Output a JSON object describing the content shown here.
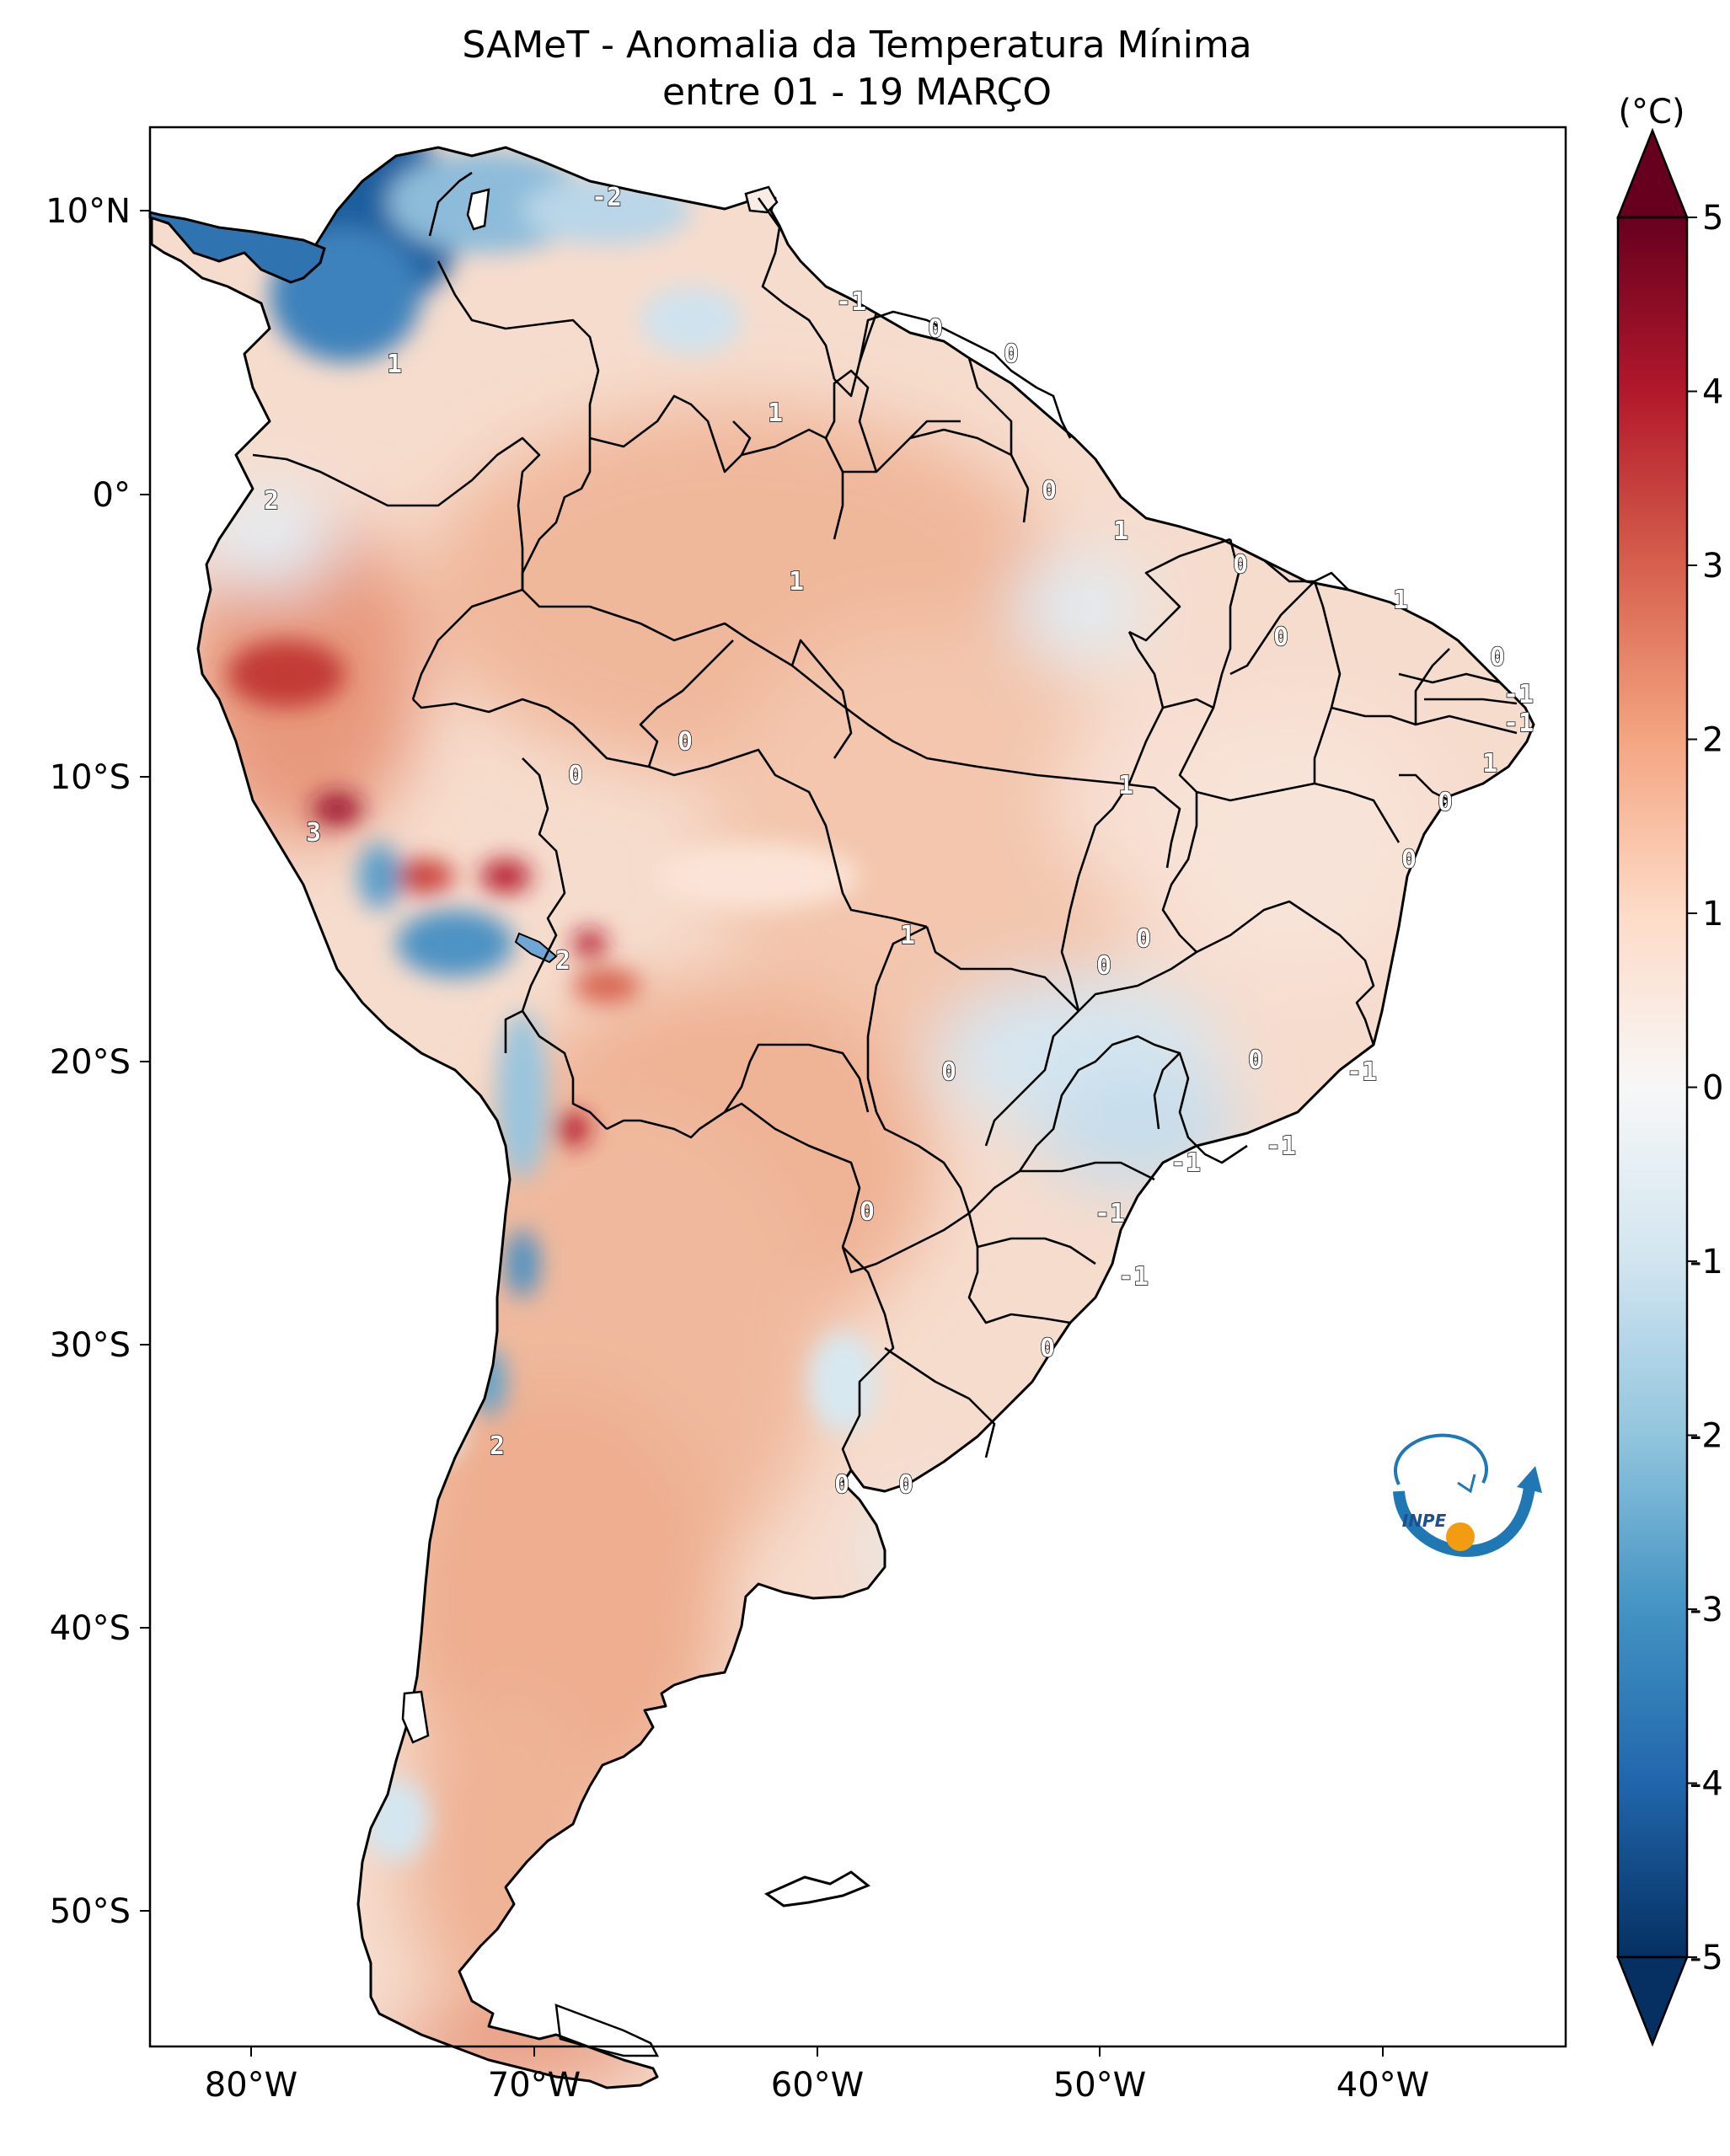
{
  "title": {
    "line1": "SAMeT - Anomalia da Temperatura Mínima",
    "line2": "entre 01 - 19 MARÇO"
  },
  "axes": {
    "lat_ticks": [
      "10°N",
      "0°",
      "10°S",
      "20°S",
      "30°S",
      "40°S",
      "50°S"
    ],
    "lon_ticks": [
      "80°W",
      "70°W",
      "60°W",
      "50°W",
      "40°W"
    ]
  },
  "colorbar": {
    "unit": "(°C)",
    "ticks": [
      "5",
      "4",
      "3",
      "2",
      "1",
      "0",
      "-1",
      "-2",
      "-3",
      "-4",
      "-5"
    ],
    "colormap": "RdBu_r",
    "colors": {
      "max": "#67001f",
      "high": "#b2182b",
      "mid_high": "#d6604d",
      "low_high": "#f4a582",
      "light_high": "#fddbc7",
      "zero": "#f7f7f7",
      "light_low": "#d1e5f0",
      "low_low": "#92c5de",
      "mid_low": "#4393c3",
      "low": "#2166ac",
      "min": "#053061"
    }
  },
  "contour_labels": [
    {
      "id": "c1",
      "text": "-2"
    },
    {
      "id": "c2",
      "text": "-1"
    },
    {
      "id": "c3",
      "text": "0"
    },
    {
      "id": "c4",
      "text": "0"
    },
    {
      "id": "c5",
      "text": "1"
    },
    {
      "id": "c6",
      "text": "1"
    },
    {
      "id": "c7",
      "text": "2"
    },
    {
      "id": "c8",
      "text": "0"
    },
    {
      "id": "c9",
      "text": "1"
    },
    {
      "id": "c10",
      "text": "0"
    },
    {
      "id": "c11",
      "text": "1"
    },
    {
      "id": "c12",
      "text": "0"
    },
    {
      "id": "c13",
      "text": "0"
    },
    {
      "id": "c14",
      "text": "1"
    },
    {
      "id": "c15",
      "text": "-1"
    },
    {
      "id": "c16",
      "text": "-1"
    },
    {
      "id": "c17",
      "text": "0"
    },
    {
      "id": "c18",
      "text": "0"
    },
    {
      "id": "c19",
      "text": "1"
    },
    {
      "id": "c20",
      "text": "0"
    },
    {
      "id": "c21",
      "text": "3"
    },
    {
      "id": "c22",
      "text": "1"
    },
    {
      "id": "c23",
      "text": "0"
    },
    {
      "id": "c24",
      "text": "1"
    },
    {
      "id": "c25",
      "text": "0"
    },
    {
      "id": "c26",
      "text": "2"
    },
    {
      "id": "c27",
      "text": "0"
    },
    {
      "id": "c28",
      "text": "0"
    },
    {
      "id": "c29",
      "text": "-1"
    },
    {
      "id": "c30",
      "text": "-1"
    },
    {
      "id": "c31",
      "text": "-1"
    },
    {
      "id": "c32",
      "text": "0"
    },
    {
      "id": "c33",
      "text": "-1"
    },
    {
      "id": "c34",
      "text": "-1"
    },
    {
      "id": "c35",
      "text": "0"
    },
    {
      "id": "c36",
      "text": "2"
    },
    {
      "id": "c37",
      "text": "0"
    },
    {
      "id": "c38",
      "text": "0"
    },
    {
      "id": "c39",
      "text": "0"
    }
  ],
  "logo": {
    "text": "INPE"
  }
}
